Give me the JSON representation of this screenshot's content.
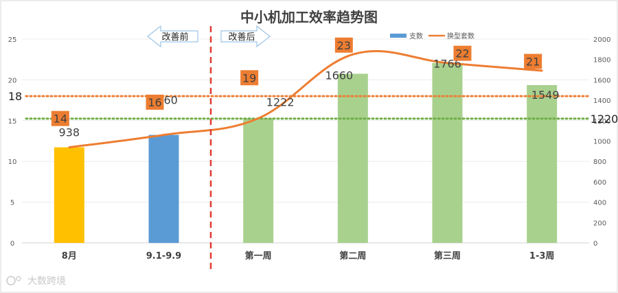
{
  "chart_data": {
    "type": "bar",
    "title": "中小机加工效率趋势图",
    "categories": [
      "8月",
      "9.1-9.9",
      "第一周",
      "第二周",
      "第三周",
      "1-3周"
    ],
    "y_left": {
      "ylim": [
        0,
        25
      ],
      "ticks": [
        0,
        5,
        10,
        15,
        20,
        25
      ]
    },
    "y_right": {
      "ylim": [
        0,
        2000
      ],
      "ticks": [
        0,
        200,
        400,
        600,
        800,
        1000,
        1200,
        1400,
        1600,
        1800,
        2000
      ]
    },
    "series": [
      {
        "name": "支数",
        "type": "bar",
        "axis": "right",
        "values": [
          938,
          1060,
          1222,
          1660,
          1766,
          1549
        ],
        "colors": [
          "#FFC000",
          "#5B9BD5",
          "#A9D18E",
          "#A9D18E",
          "#A9D18E",
          "#A9D18E"
        ],
        "legend_color": "#5B9BD5"
      },
      {
        "name": "换型套数",
        "type": "line",
        "axis": "left",
        "values": [
          14,
          16,
          19,
          23,
          22,
          21
        ],
        "color": "#ED7D31"
      }
    ],
    "reference_lines": [
      {
        "label": "18",
        "value": 18,
        "axis": "left",
        "color": "#ED7D31",
        "style": "dotted",
        "label_side": "left"
      },
      {
        "label": "1220",
        "value": 1220,
        "axis": "right",
        "color": "#70AD47",
        "style": "dotted",
        "label_side": "right"
      }
    ],
    "annotations": {
      "before": "改善前",
      "after": "改善后",
      "divider_color": "#E03C31"
    },
    "legend_placement": "top-right",
    "grid": true
  },
  "watermark": "大数跨境"
}
